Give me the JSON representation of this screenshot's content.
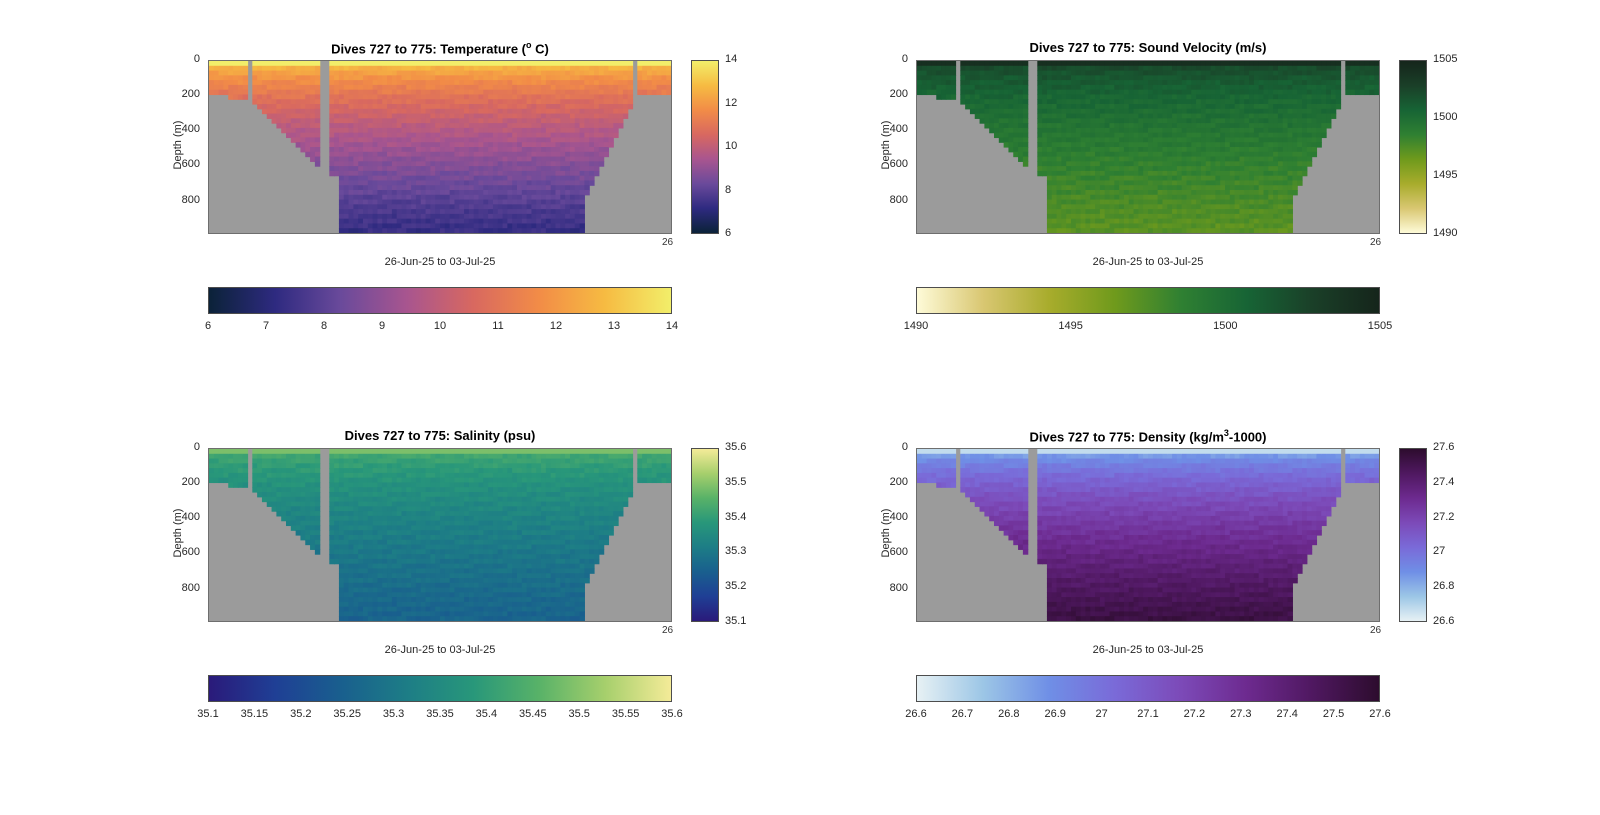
{
  "figure": {
    "panels": [
      {
        "id": "temperature",
        "title_main": "Dives 727 to 775: Temperature (",
        "title_sup": "o",
        "title_end": " C)",
        "ylabel": "Depth (m)",
        "xlabel": "26-Jun-25 to 03-Jul-25",
        "x_end_tick": "26",
        "y_ticks": [
          "0",
          "200",
          "400",
          "600",
          "800"
        ],
        "right_cbar_ticks": [
          "14",
          "12",
          "10",
          "8",
          "6"
        ],
        "bottom_cbar_ticks": [
          "6",
          "7",
          "8",
          "9",
          "10",
          "11",
          "12",
          "13",
          "14"
        ],
        "colors": [
          "#0b2238",
          "#2e2a80",
          "#6a4a9b",
          "#a8558f",
          "#d86860",
          "#f28c47",
          "#f6bb42",
          "#f2ee6a"
        ]
      },
      {
        "id": "sound-velocity",
        "title_main": "Dives 727 to 775: Sound Velocity (m/s)",
        "title_sup": "",
        "title_end": "",
        "ylabel": "Depth (m)",
        "xlabel": "26-Jun-25 to 03-Jul-25",
        "x_end_tick": "26",
        "y_ticks": [
          "0",
          "200",
          "400",
          "600",
          "800"
        ],
        "right_cbar_ticks": [
          "1505",
          "1500",
          "1495",
          "1490"
        ],
        "bottom_cbar_ticks": [
          "1490",
          "1495",
          "1500",
          "1505"
        ],
        "colors": [
          "#fefbd8",
          "#d9c772",
          "#a8ac2c",
          "#6f9a1c",
          "#2f8032",
          "#176435",
          "#1a3f28",
          "#15251b"
        ]
      },
      {
        "id": "salinity",
        "title_main": "Dives 727 to 775: Salinity (psu)",
        "title_sup": "",
        "title_end": "",
        "ylabel": "Depth (m)",
        "xlabel": "26-Jun-25 to 03-Jul-25",
        "x_end_tick": "26",
        "y_ticks": [
          "0",
          "200",
          "400",
          "600",
          "800"
        ],
        "right_cbar_ticks": [
          "35.6",
          "35.5",
          "35.4",
          "35.3",
          "35.2",
          "35.1"
        ],
        "bottom_cbar_ticks": [
          "35.1",
          "35.15",
          "35.2",
          "35.25",
          "35.3",
          "35.35",
          "35.4",
          "35.45",
          "35.5",
          "35.55",
          "35.6"
        ],
        "colors": [
          "#2a1a7a",
          "#1f3f95",
          "#195f8e",
          "#1d7d86",
          "#28977a",
          "#58b268",
          "#a6cf6c",
          "#f4eb98"
        ]
      },
      {
        "id": "density",
        "title_main": "Dives 727 to 775: Density (kg/m",
        "title_sup": "3",
        "title_end": "-1000)",
        "ylabel": "Depth (m)",
        "xlabel": "26-Jun-25 to 03-Jul-25",
        "x_end_tick": "26",
        "y_ticks": [
          "0",
          "200",
          "400",
          "600",
          "800"
        ],
        "right_cbar_ticks": [
          "27.6",
          "27.4",
          "27.2",
          "27",
          "26.8",
          "26.6"
        ],
        "bottom_cbar_ticks": [
          "26.6",
          "26.7",
          "26.8",
          "26.9",
          "27",
          "27.1",
          "27.2",
          "27.3",
          "27.4",
          "27.5",
          "27.6"
        ],
        "colors": [
          "#e7f1f4",
          "#9cc6e6",
          "#6f8fe6",
          "#7a6ad8",
          "#7c4ab8",
          "#6d2a8f",
          "#4f1860",
          "#2d0c2e"
        ]
      }
    ]
  },
  "chart_data": [
    {
      "type": "heatmap",
      "title": "Dives 727 to 775: Temperature (o C)",
      "xlabel": "26-Jun-25 to 03-Jul-25",
      "ylabel": "Depth (m)",
      "ylim": [
        990,
        0
      ],
      "clim": [
        6,
        14
      ],
      "surface_value": 13.5,
      "deep_value": 7.2,
      "colorbar": "right and bottom"
    },
    {
      "type": "heatmap",
      "title": "Dives 727 to 775: Sound Velocity (m/s)",
      "xlabel": "26-Jun-25 to 03-Jul-25",
      "ylabel": "Depth (m)",
      "ylim": [
        990,
        0
      ],
      "clim": [
        1490,
        1505
      ],
      "surface_value": 1503,
      "deep_value": 1497,
      "colorbar": "right and bottom"
    },
    {
      "type": "heatmap",
      "title": "Dives 727 to 775: Salinity (psu)",
      "xlabel": "26-Jun-25 to 03-Jul-25",
      "ylabel": "Depth (m)",
      "ylim": [
        990,
        0
      ],
      "clim": [
        35.1,
        35.6
      ],
      "surface_value": 35.45,
      "deep_value": 35.25,
      "colorbar": "right and bottom"
    },
    {
      "type": "heatmap",
      "title": "Dives 727 to 775: Density (kg/m3-1000)",
      "xlabel": "26-Jun-25 to 03-Jul-25",
      "ylabel": "Depth (m)",
      "ylim": [
        990,
        0
      ],
      "clim": [
        26.6,
        27.6
      ],
      "surface_value": 26.75,
      "deep_value": 27.55,
      "colorbar": "right and bottom"
    }
  ]
}
